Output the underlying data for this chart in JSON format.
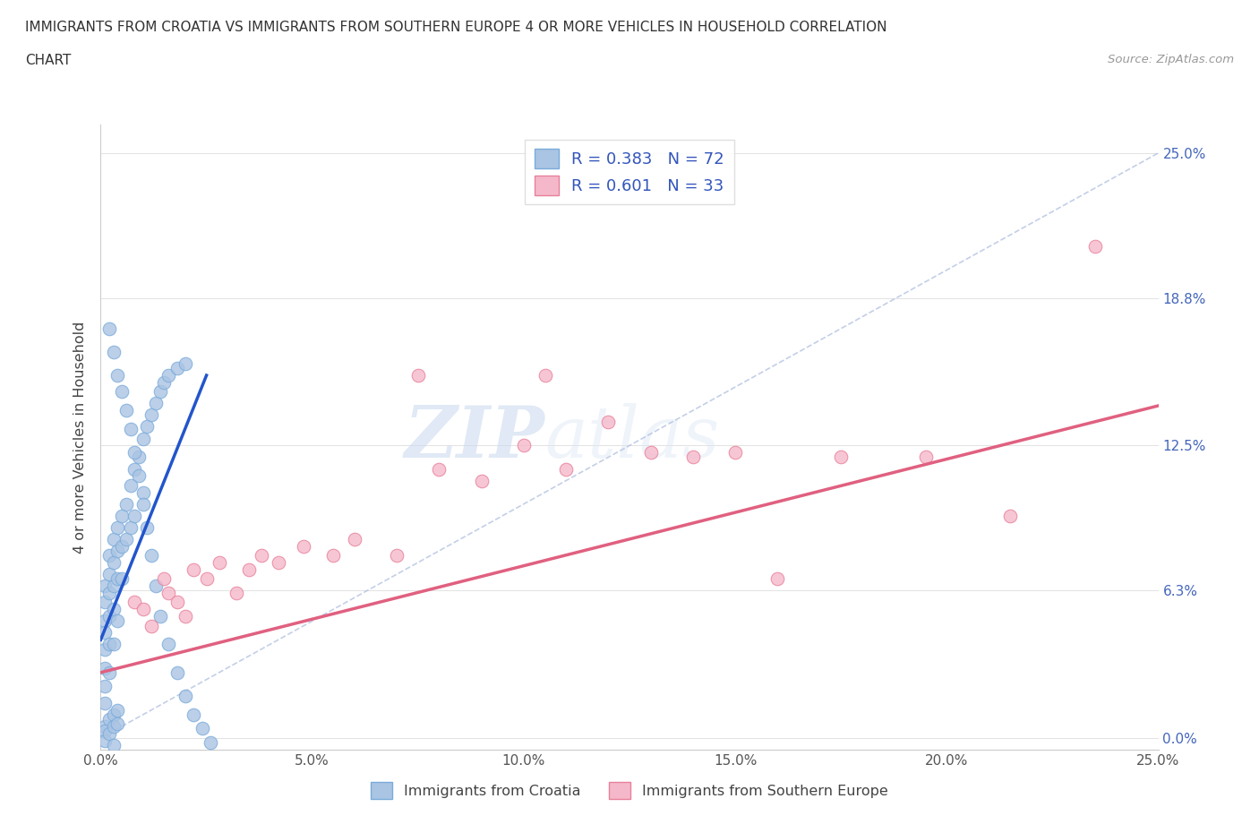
{
  "title_line1": "IMMIGRANTS FROM CROATIA VS IMMIGRANTS FROM SOUTHERN EUROPE 4 OR MORE VEHICLES IN HOUSEHOLD CORRELATION",
  "title_line2": "CHART",
  "source_text": "Source: ZipAtlas.com",
  "ylabel": "4 or more Vehicles in Household",
  "xmin": 0.0,
  "xmax": 0.25,
  "ymin": -0.005,
  "ymax": 0.262,
  "yticks": [
    0.0,
    0.063,
    0.125,
    0.188,
    0.25
  ],
  "ytick_labels": [
    "0.0%",
    "6.3%",
    "12.5%",
    "18.8%",
    "25.0%"
  ],
  "xticks": [
    0.0,
    0.05,
    0.1,
    0.15,
    0.2,
    0.25
  ],
  "xtick_labels": [
    "0.0%",
    "5.0%",
    "10.0%",
    "15.0%",
    "20.0%",
    "25.0%"
  ],
  "croatia_color": "#aac4e3",
  "croatia_edge_color": "#7aabdb",
  "southern_color": "#f5b8cb",
  "southern_edge_color": "#e8809a",
  "croatia_R": 0.383,
  "croatia_N": 72,
  "southern_R": 0.601,
  "southern_N": 33,
  "legend_label_croatia": "Immigrants from Croatia",
  "legend_label_southern": "Immigrants from Southern Europe",
  "watermark_zip": "ZIP",
  "watermark_atlas": "atlas",
  "croatia_scatter_x": [
    0.001,
    0.001,
    0.001,
    0.001,
    0.001,
    0.001,
    0.001,
    0.001,
    0.002,
    0.002,
    0.002,
    0.002,
    0.002,
    0.002,
    0.003,
    0.003,
    0.003,
    0.003,
    0.003,
    0.004,
    0.004,
    0.004,
    0.004,
    0.005,
    0.005,
    0.005,
    0.006,
    0.006,
    0.007,
    0.007,
    0.008,
    0.008,
    0.009,
    0.01,
    0.01,
    0.011,
    0.012,
    0.013,
    0.014,
    0.015,
    0.016,
    0.018,
    0.02,
    0.002,
    0.003,
    0.004,
    0.005,
    0.006,
    0.007,
    0.008,
    0.009,
    0.01,
    0.011,
    0.012,
    0.013,
    0.014,
    0.016,
    0.018,
    0.02,
    0.022,
    0.024,
    0.026,
    0.001,
    0.001,
    0.001,
    0.002,
    0.002,
    0.003,
    0.003,
    0.003,
    0.004,
    0.004
  ],
  "croatia_scatter_y": [
    0.065,
    0.058,
    0.05,
    0.045,
    0.038,
    0.03,
    0.022,
    0.015,
    0.078,
    0.07,
    0.062,
    0.052,
    0.04,
    0.028,
    0.085,
    0.075,
    0.065,
    0.055,
    0.04,
    0.09,
    0.08,
    0.068,
    0.05,
    0.095,
    0.082,
    0.068,
    0.1,
    0.085,
    0.108,
    0.09,
    0.115,
    0.095,
    0.12,
    0.128,
    0.105,
    0.133,
    0.138,
    0.143,
    0.148,
    0.152,
    0.155,
    0.158,
    0.16,
    0.175,
    0.165,
    0.155,
    0.148,
    0.14,
    0.132,
    0.122,
    0.112,
    0.1,
    0.09,
    0.078,
    0.065,
    0.052,
    0.04,
    0.028,
    0.018,
    0.01,
    0.004,
    -0.002,
    0.005,
    0.003,
    -0.001,
    0.008,
    0.002,
    0.01,
    0.005,
    -0.003,
    0.012,
    0.006
  ],
  "southern_scatter_x": [
    0.008,
    0.01,
    0.012,
    0.015,
    0.016,
    0.018,
    0.02,
    0.022,
    0.025,
    0.028,
    0.032,
    0.035,
    0.038,
    0.042,
    0.048,
    0.055,
    0.06,
    0.07,
    0.075,
    0.08,
    0.09,
    0.1,
    0.105,
    0.11,
    0.12,
    0.13,
    0.14,
    0.15,
    0.16,
    0.175,
    0.195,
    0.215,
    0.235
  ],
  "southern_scatter_y": [
    0.058,
    0.055,
    0.048,
    0.068,
    0.062,
    0.058,
    0.052,
    0.072,
    0.068,
    0.075,
    0.062,
    0.072,
    0.078,
    0.075,
    0.082,
    0.078,
    0.085,
    0.078,
    0.155,
    0.115,
    0.11,
    0.125,
    0.155,
    0.115,
    0.135,
    0.122,
    0.12,
    0.122,
    0.068,
    0.12,
    0.12,
    0.095,
    0.21
  ],
  "croatia_trend_x": [
    0.0,
    0.025
  ],
  "croatia_trend_y": [
    0.042,
    0.155
  ],
  "southern_trend_x": [
    0.0,
    0.25
  ],
  "southern_trend_y": [
    0.028,
    0.142
  ],
  "ref_line_x": [
    0.0,
    0.25
  ],
  "ref_line_y": [
    0.0,
    0.25
  ]
}
